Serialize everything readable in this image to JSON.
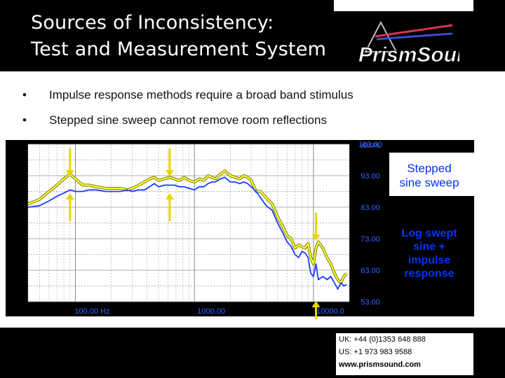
{
  "slide": {
    "title": "Sources of Inconsistency:\nTest and Measurement System",
    "bullets": [
      "Impulse response methods require a broad band stimulus",
      "Stepped sine sweep cannot remove room reflections"
    ],
    "logo_text": "PrismSound"
  },
  "contact": {
    "uk": "UK: +44 (0)1353 648 888",
    "us": "US: +1 973 983 9588",
    "web": "www.prismsound.com"
  },
  "colors": {
    "header_bg": "#000000",
    "plot_bg": "#ffffff",
    "stepped_sweep": "#ffff33",
    "log_swept": "#1a3cff",
    "arrows": "#e6d800",
    "axis_text": "#3366ff"
  },
  "chart_data": {
    "type": "line",
    "x_scale": "log",
    "xlim": [
      40,
      20000
    ],
    "ylim": [
      53,
      103
    ],
    "y_unit": "dBSPL",
    "x_tick_labels": [
      {
        "x": 100,
        "label": "100.00 Hz"
      },
      {
        "x": 1000,
        "label": "1000.00"
      },
      {
        "x": 10000,
        "label": "10000.0"
      }
    ],
    "y_tick_labels": [
      {
        "y": 103,
        "label": "103.00"
      },
      {
        "y": 93,
        "label": "93.00"
      },
      {
        "y": 83,
        "label": "83.00"
      },
      {
        "y": 73,
        "label": "73.00"
      },
      {
        "y": 63,
        "label": "63.00"
      },
      {
        "y": 53,
        "label": "53.00"
      }
    ],
    "series": [
      {
        "name": "Stepped sine sweep",
        "color": "#ffff33",
        "points": [
          [
            40,
            84
          ],
          [
            50,
            85.5
          ],
          [
            60,
            88
          ],
          [
            70,
            90
          ],
          [
            80,
            92
          ],
          [
            90,
            93.5
          ],
          [
            100,
            92
          ],
          [
            115,
            90
          ],
          [
            130,
            90
          ],
          [
            150,
            89.5
          ],
          [
            180,
            89
          ],
          [
            210,
            89
          ],
          [
            240,
            89
          ],
          [
            270,
            88.5
          ],
          [
            300,
            89
          ],
          [
            340,
            90
          ],
          [
            380,
            91
          ],
          [
            420,
            92
          ],
          [
            460,
            92.5
          ],
          [
            500,
            91.5
          ],
          [
            560,
            92
          ],
          [
            620,
            92.5
          ],
          [
            680,
            92
          ],
          [
            750,
            91.5
          ],
          [
            820,
            92.5
          ],
          [
            900,
            91.5
          ],
          [
            1000,
            91
          ],
          [
            1100,
            92
          ],
          [
            1200,
            91.5
          ],
          [
            1300,
            93
          ],
          [
            1400,
            92.5
          ],
          [
            1500,
            92
          ],
          [
            1650,
            93.5
          ],
          [
            1800,
            94.5
          ],
          [
            2000,
            93
          ],
          [
            2200,
            92.5
          ],
          [
            2400,
            92
          ],
          [
            2600,
            93
          ],
          [
            2800,
            92.5
          ],
          [
            3000,
            91.5
          ],
          [
            3300,
            88
          ],
          [
            3600,
            88
          ],
          [
            4000,
            86
          ],
          [
            4500,
            84
          ],
          [
            5000,
            80
          ],
          [
            5500,
            77
          ],
          [
            6000,
            74
          ],
          [
            6500,
            73
          ],
          [
            7000,
            70
          ],
          [
            7500,
            71
          ],
          [
            8000,
            70.5
          ],
          [
            8500,
            70
          ],
          [
            9000,
            71.5
          ],
          [
            9500,
            67
          ],
          [
            10000,
            65
          ],
          [
            10500,
            70
          ],
          [
            11000,
            72
          ],
          [
            12000,
            70
          ],
          [
            13000,
            67
          ],
          [
            14000,
            65
          ],
          [
            15000,
            62
          ],
          [
            16000,
            60
          ],
          [
            17000,
            59
          ],
          [
            18000,
            61
          ],
          [
            19000,
            62
          ]
        ]
      },
      {
        "name": "Log swept sine + impulse response",
        "color": "#1a3cff",
        "points": [
          [
            40,
            83
          ],
          [
            50,
            83.5
          ],
          [
            60,
            85
          ],
          [
            70,
            86.5
          ],
          [
            80,
            87.5
          ],
          [
            90,
            88.5
          ],
          [
            100,
            88
          ],
          [
            115,
            88
          ],
          [
            130,
            88.5
          ],
          [
            150,
            88.5
          ],
          [
            180,
            88
          ],
          [
            210,
            88
          ],
          [
            240,
            88
          ],
          [
            270,
            88.5
          ],
          [
            300,
            88
          ],
          [
            340,
            88.5
          ],
          [
            380,
            88.5
          ],
          [
            420,
            89.5
          ],
          [
            460,
            90.5
          ],
          [
            500,
            89.5
          ],
          [
            560,
            90
          ],
          [
            620,
            90
          ],
          [
            680,
            90
          ],
          [
            750,
            89.5
          ],
          [
            820,
            89.5
          ],
          [
            900,
            89
          ],
          [
            1000,
            88.5
          ],
          [
            1100,
            89.5
          ],
          [
            1200,
            89.5
          ],
          [
            1300,
            90.5
          ],
          [
            1400,
            91
          ],
          [
            1500,
            91
          ],
          [
            1650,
            92
          ],
          [
            1800,
            92.5
          ],
          [
            2000,
            91
          ],
          [
            2200,
            91
          ],
          [
            2400,
            90.5
          ],
          [
            2600,
            91
          ],
          [
            2800,
            90.5
          ],
          [
            3000,
            89.5
          ],
          [
            3300,
            88
          ],
          [
            3600,
            86
          ],
          [
            4000,
            83.5
          ],
          [
            4500,
            82
          ],
          [
            5000,
            78
          ],
          [
            5500,
            75
          ],
          [
            6000,
            72
          ],
          [
            6500,
            70.5
          ],
          [
            7000,
            68
          ],
          [
            7500,
            67
          ],
          [
            8000,
            69
          ],
          [
            8500,
            68.5
          ],
          [
            9000,
            67
          ],
          [
            9500,
            62
          ],
          [
            10000,
            61
          ],
          [
            10500,
            65
          ],
          [
            11000,
            60
          ],
          [
            12000,
            61
          ],
          [
            13000,
            60
          ],
          [
            14000,
            61
          ],
          [
            15000,
            59
          ],
          [
            16000,
            57
          ],
          [
            17000,
            59
          ],
          [
            18000,
            58
          ],
          [
            19000,
            58.5
          ]
        ]
      }
    ],
    "annotations": [
      {
        "text": "Stepped\nsine sweep",
        "color": "#0033ff"
      },
      {
        "text": "Log swept\nsine +\nimpulse\nresponse",
        "color": "#0033ff"
      }
    ],
    "arrows": [
      {
        "x": 90,
        "direction": "down"
      },
      {
        "x": 90,
        "direction": "up"
      },
      {
        "x": 620,
        "direction": "down"
      },
      {
        "x": 620,
        "direction": "up"
      },
      {
        "x": 10500,
        "direction": "down"
      },
      {
        "x": 10500,
        "direction": "up"
      }
    ],
    "grid": true
  }
}
